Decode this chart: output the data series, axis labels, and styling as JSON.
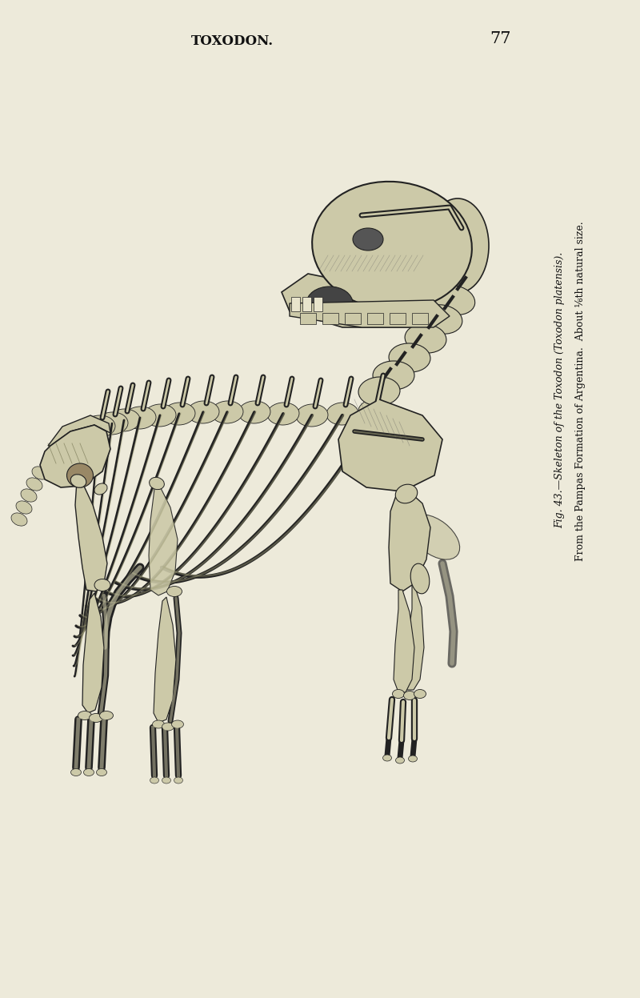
{
  "background_color": "#edeada",
  "page_title": "TOXODON.",
  "page_number": "77",
  "title_fontsize": 12,
  "page_num_fontsize": 15,
  "caption_line1": "Fig. 43.—Skeleton of the Toxodon (Toxodon platensis).",
  "caption_line2": "From the Pampas Formation of Argentina.  About ⅙th natural size.",
  "caption_fontsize": 9,
  "text_color": "#111111",
  "bone_color": "#222222",
  "bone_fill": "#ccc9a8",
  "dark_fill": "#555533"
}
